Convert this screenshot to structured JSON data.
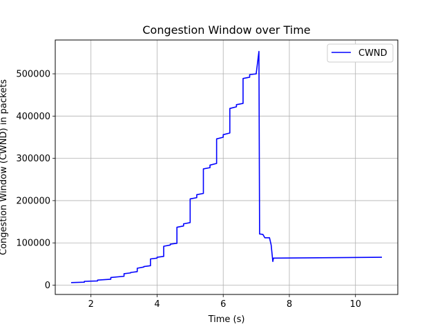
{
  "chart_data": {
    "type": "line",
    "title": "Congestion Window over Time",
    "xlabel": "Time (s)",
    "ylabel": "Congestion Window (CWND) in packets",
    "xlim": [
      0.92,
      11.28
    ],
    "ylim": [
      -22000,
      580000
    ],
    "xticks": [
      2,
      4,
      6,
      8,
      10
    ],
    "yticks": [
      0,
      100000,
      200000,
      300000,
      400000,
      500000
    ],
    "grid": true,
    "legend_position": "top-right",
    "series": [
      {
        "name": "CWND",
        "color": "#0000ff",
        "x": [
          1.4,
          1.8,
          1.8,
          2.2,
          2.2,
          2.6,
          2.6,
          3.0,
          3.0,
          3.2,
          3.2,
          3.4,
          3.4,
          3.6,
          3.6,
          3.8,
          3.8,
          4.0,
          4.0,
          4.2,
          4.2,
          4.4,
          4.4,
          4.6,
          4.6,
          4.8,
          4.8,
          5.0,
          5.0,
          5.2,
          5.2,
          5.4,
          5.4,
          5.6,
          5.6,
          5.8,
          5.8,
          6.0,
          6.0,
          6.2,
          6.2,
          6.4,
          6.4,
          6.6,
          6.6,
          6.8,
          6.8,
          7.0,
          7.0,
          7.08,
          7.1,
          7.1,
          7.2,
          7.26,
          7.4,
          7.45,
          7.5,
          7.52,
          10.8
        ],
        "y": [
          6000,
          7000,
          9000,
          10000,
          12000,
          14000,
          18000,
          21000,
          27000,
          29000,
          30000,
          32000,
          40000,
          43000,
          44000,
          46000,
          62000,
          64000,
          66000,
          68000,
          92000,
          95000,
          97000,
          99000,
          137000,
          140000,
          145000,
          148000,
          204000,
          207000,
          214000,
          217000,
          275000,
          278000,
          284000,
          288000,
          346000,
          350000,
          356000,
          360000,
          418000,
          422000,
          427000,
          430000,
          489000,
          492000,
          498000,
          500000,
          502000,
          553000,
          121000,
          121000,
          120000,
          112000,
          112000,
          95000,
          56000,
          64000,
          66000
        ]
      }
    ]
  }
}
